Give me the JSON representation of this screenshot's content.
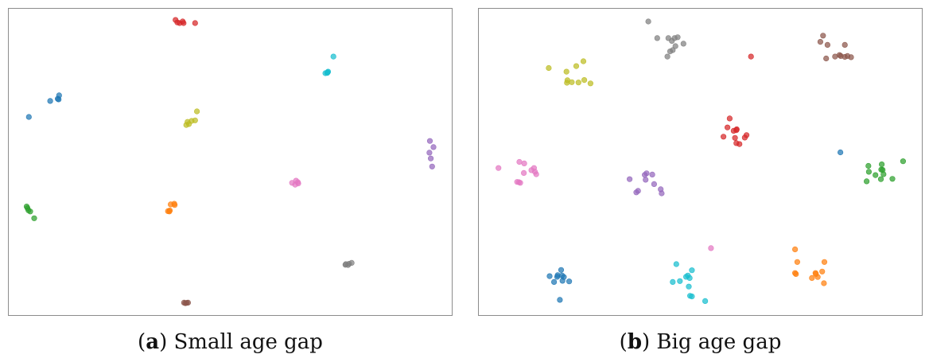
{
  "captions": [
    {
      "label": "a",
      "text": "Small age gap"
    },
    {
      "label": "b",
      "text": "Big age gap"
    }
  ],
  "chart_data": [
    {
      "type": "scatter",
      "title": "",
      "xlabel": "",
      "ylabel": "",
      "grid": false,
      "xlim": [
        0,
        100
      ],
      "ylim": [
        0,
        100
      ],
      "series": [
        {
          "color": "#d62728",
          "points": [
            [
              37.7,
              96.1
            ],
            [
              38.6,
              95.1
            ],
            [
              39.5,
              95.1
            ],
            [
              38.1,
              95.3
            ],
            [
              39.3,
              95.6
            ],
            [
              42.1,
              95.1
            ]
          ]
        },
        {
          "color": "#17becf",
          "points": [
            [
              73.2,
              84.2
            ],
            [
              71.4,
              78.8
            ],
            [
              71.9,
              79.1
            ],
            [
              72.0,
              79.3
            ],
            [
              71.8,
              78.9
            ]
          ]
        },
        {
          "color": "#1f77b4",
          "points": [
            [
              4.7,
              64.6
            ],
            [
              9.5,
              69.8
            ],
            [
              11.2,
              70.5
            ],
            [
              11.5,
              71.6
            ],
            [
              11.4,
              70.3
            ]
          ]
        },
        {
          "color": "#bcbd22",
          "points": [
            [
              42.5,
              66.4
            ],
            [
              40.7,
              62.3
            ],
            [
              41.3,
              63.3
            ],
            [
              42.1,
              63.5
            ],
            [
              40.4,
              63.0
            ],
            [
              40.1,
              62.0
            ]
          ]
        },
        {
          "color": "#9467bd",
          "points": [
            [
              94.9,
              56.8
            ],
            [
              95.7,
              54.8
            ],
            [
              94.8,
              53.0
            ],
            [
              95.1,
              51.1
            ],
            [
              95.4,
              48.5
            ]
          ]
        },
        {
          "color": "#e377c2",
          "points": [
            [
              63.9,
              43.2
            ],
            [
              64.8,
              43.9
            ],
            [
              65.3,
              43.0
            ],
            [
              64.6,
              42.6
            ],
            [
              65.2,
              43.4
            ]
          ]
        },
        {
          "color": "#2ca02c",
          "points": [
            [
              4.2,
              35.5
            ],
            [
              4.4,
              35.0
            ],
            [
              5.0,
              33.9
            ],
            [
              4.6,
              34.3
            ],
            [
              5.9,
              31.7
            ]
          ]
        },
        {
          "color": "#ff7f0e",
          "points": [
            [
              36.6,
              36.2
            ],
            [
              37.4,
              36.4
            ],
            [
              37.5,
              36.0
            ],
            [
              36.0,
              34.0
            ],
            [
              36.4,
              34.2
            ],
            [
              36.3,
              33.9
            ]
          ]
        },
        {
          "color": "#7f7f7f",
          "points": [
            [
              76.0,
              16.8
            ],
            [
              76.7,
              16.9
            ],
            [
              77.3,
              17.2
            ],
            [
              76.5,
              16.5
            ],
            [
              75.9,
              16.6
            ]
          ]
        },
        {
          "color": "#8c564b",
          "points": [
            [
              39.6,
              4.3
            ],
            [
              40.2,
              4.2
            ],
            [
              40.5,
              4.3
            ],
            [
              39.9,
              4.1
            ]
          ]
        }
      ]
    },
    {
      "type": "scatter",
      "title": "",
      "xlabel": "",
      "ylabel": "",
      "grid": false,
      "xlim": [
        0,
        100
      ],
      "ylim": [
        0,
        100
      ],
      "series": [
        {
          "color": "#7f7f7f",
          "points": [
            [
              38.3,
              95.6
            ],
            [
              40.3,
              90.2
            ],
            [
              42.8,
              90.2
            ],
            [
              44.2,
              90.2
            ],
            [
              44.9,
              90.5
            ],
            [
              43.6,
              89.3
            ],
            [
              46.2,
              88.4
            ],
            [
              44.4,
              87.6
            ],
            [
              43.8,
              86.3
            ],
            [
              42.6,
              84.2
            ],
            [
              43.2,
              85.9
            ]
          ]
        },
        {
          "color": "#bcbd22",
          "points": [
            [
              15.9,
              80.5
            ],
            [
              19.9,
              79.3
            ],
            [
              22.1,
              81.1
            ],
            [
              23.7,
              82.7
            ],
            [
              20.1,
              76.5
            ],
            [
              20.0,
              75.7
            ],
            [
              21.1,
              75.9
            ],
            [
              22.6,
              75.8
            ],
            [
              23.9,
              76.6
            ],
            [
              25.3,
              75.5
            ]
          ]
        },
        {
          "color": "#8c564b",
          "points": [
            [
              77.6,
              91.0
            ],
            [
              77.0,
              89.0
            ],
            [
              78.6,
              88.0
            ],
            [
              82.5,
              88.0
            ],
            [
              81.3,
              84.7
            ],
            [
              82.5,
              84.1
            ],
            [
              81.6,
              84.4
            ],
            [
              83.1,
              84.4
            ],
            [
              83.9,
              84.0
            ],
            [
              80.3,
              84.2
            ],
            [
              78.3,
              83.6
            ]
          ]
        },
        {
          "color": "#d62728",
          "points": [
            [
              61.4,
              84.2
            ]
          ]
        },
        {
          "color": "#d62728",
          "points": [
            [
              56.6,
              64.1
            ],
            [
              56.1,
              61.2
            ],
            [
              58.2,
              60.6
            ],
            [
              57.5,
              60.1
            ],
            [
              58.1,
              60.3
            ],
            [
              55.2,
              58.2
            ],
            [
              57.8,
              57.8
            ],
            [
              60.0,
              57.9
            ],
            [
              60.4,
              58.7
            ],
            [
              58.8,
              55.8
            ],
            [
              58.1,
              56.1
            ]
          ]
        },
        {
          "color": "#1f77b4",
          "points": [
            [
              81.5,
              53.1
            ]
          ]
        },
        {
          "color": "#2ca02c",
          "points": [
            [
              95.6,
              50.2
            ],
            [
              90.8,
              49.2
            ],
            [
              91.0,
              47.4
            ],
            [
              90.7,
              47.5
            ],
            [
              87.8,
              48.7
            ],
            [
              87.9,
              46.8
            ],
            [
              89.4,
              45.7
            ],
            [
              91.2,
              46.0
            ],
            [
              93.2,
              44.5
            ],
            [
              90.6,
              44.4
            ],
            [
              87.4,
              43.7
            ]
          ]
        },
        {
          "color": "#e377c2",
          "points": [
            [
              4.6,
              48.0
            ],
            [
              9.3,
              50.0
            ],
            [
              10.4,
              49.5
            ],
            [
              12.6,
              48.0
            ],
            [
              12.8,
              46.8
            ],
            [
              10.3,
              46.4
            ],
            [
              13.1,
              46.0
            ],
            [
              12.0,
              47.3
            ],
            [
              8.8,
              43.5
            ],
            [
              9.2,
              43.4
            ],
            [
              9.5,
              43.2
            ]
          ]
        },
        {
          "color": "#9467bd",
          "points": [
            [
              37.9,
              46.3
            ],
            [
              37.5,
              45.8
            ],
            [
              39.2,
              45.9
            ],
            [
              34.1,
              44.4
            ],
            [
              37.7,
              44.2
            ],
            [
              39.6,
              42.8
            ],
            [
              41.1,
              41.1
            ],
            [
              36.0,
              40.6
            ],
            [
              35.6,
              40.1
            ],
            [
              41.3,
              39.8
            ]
          ]
        },
        {
          "color": "#e377c2",
          "points": [
            [
              52.4,
              22.0
            ]
          ]
        },
        {
          "color": "#1f77b4",
          "points": [
            [
              18.7,
              14.9
            ],
            [
              16.1,
              12.9
            ],
            [
              17.9,
              13.2
            ],
            [
              17.8,
              12.7
            ],
            [
              18.9,
              13.1
            ],
            [
              19.3,
              12.6
            ],
            [
              20.5,
              11.2
            ],
            [
              17.1,
              11.0
            ],
            [
              19.0,
              11.4
            ],
            [
              18.4,
              5.2
            ]
          ]
        },
        {
          "color": "#17becf",
          "points": [
            [
              44.6,
              16.8
            ],
            [
              48.1,
              14.8
            ],
            [
              47.2,
              13.1
            ],
            [
              47.6,
              12.3
            ],
            [
              46.8,
              12.7
            ],
            [
              45.4,
              11.3
            ],
            [
              43.8,
              11.0
            ],
            [
              47.4,
              9.5
            ],
            [
              47.7,
              6.5
            ],
            [
              48.1,
              6.3
            ],
            [
              51.1,
              4.8
            ]
          ]
        },
        {
          "color": "#ff7f0e",
          "points": [
            [
              71.3,
              21.6
            ],
            [
              71.8,
              17.5
            ],
            [
              77.9,
              17.5
            ],
            [
              71.3,
              13.9
            ],
            [
              71.5,
              13.6
            ],
            [
              75.9,
              13.9
            ],
            [
              76.0,
              13.6
            ],
            [
              77.4,
              14.4
            ],
            [
              76.4,
              12.6
            ],
            [
              75.1,
              12.3
            ],
            [
              77.8,
              10.6
            ]
          ]
        }
      ]
    }
  ]
}
